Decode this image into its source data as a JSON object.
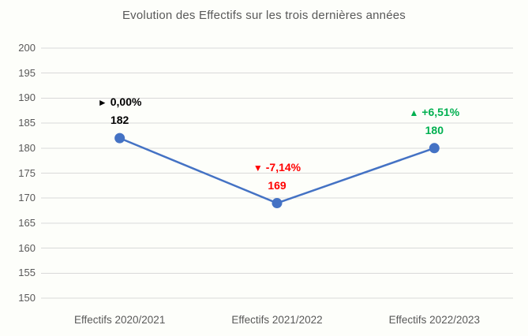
{
  "title": "Evolution des Effectifs sur les trois dernières années",
  "colors": {
    "background": "#FDFEFA",
    "title_text": "#595959",
    "axis_text": "#595959",
    "gridline": "#D9D9D9",
    "line": "#4472C4",
    "marker": "#4472C4",
    "annotation_flat": "#000000",
    "annotation_down": "#FF0000",
    "annotation_up": "#00B050"
  },
  "chart_data": {
    "type": "line",
    "title": "Evolution des Effectifs sur les trois dernières années",
    "categories": [
      "Effectifs 2020/2021",
      "Effectifs 2021/2022",
      "Effectifs 2022/2023"
    ],
    "series": [
      {
        "name": "Effectifs",
        "values": [
          182,
          169,
          180
        ]
      }
    ],
    "xlabel": "",
    "ylabel": "",
    "ylim": [
      150,
      200
    ],
    "yticks": [
      200,
      195,
      190,
      185,
      180,
      175,
      170,
      165,
      160,
      155,
      150
    ],
    "grid": true,
    "legend": "none",
    "annotations": [
      {
        "direction": "flat",
        "arrow": "►",
        "percent": "0,00%",
        "value": "182",
        "color": "#000000",
        "point_index": 0
      },
      {
        "direction": "down",
        "arrow": "▼",
        "percent": "-7,14%",
        "value": "169",
        "color": "#FF0000",
        "point_index": 1
      },
      {
        "direction": "up",
        "arrow": "▲",
        "percent": "+6,51%",
        "value": "180",
        "color": "#00B050",
        "point_index": 2
      }
    ]
  }
}
